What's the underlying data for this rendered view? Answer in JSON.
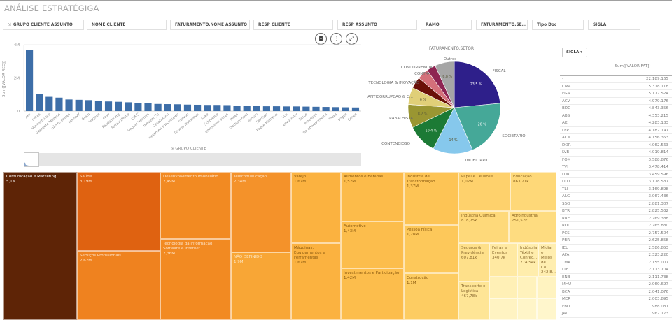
{
  "app": {
    "title": "ANÁLISE ESTRATÉGIGA"
  },
  "filters": [
    {
      "label": "GRUPO CLIENTE ASSUNTO",
      "icon": "hierarchy-icon"
    },
    {
      "label": "NOME CLIENTE"
    },
    {
      "label": "FATURAMENTO.NOME ASSUNTO"
    },
    {
      "label": "RESP CLIENTE"
    },
    {
      "label": "RESP ASSUNTO"
    },
    {
      "label": "RAMO"
    },
    {
      "label": "FATURAMENTO.SE..."
    },
    {
      "label": "Tipo Doc"
    },
    {
      "label": "SIGLA"
    }
  ],
  "bar_tools": {
    "snapshot": "camera-icon",
    "settings": "sliders-icon",
    "expand": "expand-icon"
  },
  "chart_data": [
    {
      "type": "bar",
      "ylabel": "Sum([VALOR REC])",
      "xlabel": "GRUPO CLIENTE",
      "yticks": [
        "0",
        "2M",
        "4M"
      ],
      "ylim": [
        0,
        4000000
      ],
      "color": "#3d6ea8",
      "categories": [
        "xxx",
        "cekes",
        "Vovosemvom",
        "Gemeem Momms",
        "não fe epices",
        "fosecvV",
        "Gmm",
        "Hughes",
        "cesv",
        "Faedemcerg",
        "femvicifespe",
        "CMrC",
        "Unovel Heemm",
        "mevem (1)",
        "Cesefasson",
        "nexemen successewe",
        "cosvon",
        "Gsomo Jesesoevo",
        "Kuke",
        "Schomme",
        "emesocen voses",
        "mees",
        "Dezhenvhem",
        "ecosvv",
        "Senfsoe",
        "Foese Momeno",
        "Vco",
        "esvonomy",
        "Essos",
        "emesoen",
        "Gn omvesvmems",
        "foves",
        "voges",
        "Ceses"
      ],
      "values": [
        3700000,
        1030000,
        860000,
        810000,
        700000,
        680000,
        660000,
        630000,
        580000,
        560000,
        530000,
        500000,
        470000,
        430000,
        420000,
        410000,
        390000,
        380000,
        370000,
        370000,
        360000,
        330000,
        320000,
        300000,
        290000,
        290000,
        280000,
        280000,
        270000,
        260000,
        250000,
        240000,
        230000,
        220000
      ]
    },
    {
      "type": "pie",
      "title": "FATURAMENTO.SETOR",
      "slices": [
        {
          "label": "FISCAL",
          "value": 23.5,
          "pct_label": "23,5 %",
          "color": "#2e1f8a"
        },
        {
          "label": "SOCIETARIO",
          "value": 20,
          "pct_label": "20 %",
          "color": "#45a898"
        },
        {
          "label": "IMOBILIARIO",
          "value": 14,
          "pct_label": "14 %",
          "color": "#86c8ec"
        },
        {
          "label": "CONTENCIOSO",
          "value": 10.4,
          "pct_label": "10,4 %",
          "color": "#1c7a35"
        },
        {
          "label": "TRABALHISTA",
          "value": 8.2,
          "pct_label": "8,2 %",
          "color": "#9a9632"
        },
        {
          "label": "ANTICORRUPCAO & C...",
          "value": 6,
          "pct_label": "6 %",
          "color": "#e0cf78"
        },
        {
          "label": "TECNOLOGIA & INOVAÇÃO",
          "value": 4,
          "pct_label": "",
          "color": "#6a1008"
        },
        {
          "label": "CONTRATOS",
          "value": 3.9,
          "pct_label": "",
          "color": "#d4707a"
        },
        {
          "label": "CONCORRENCIAL",
          "value": 3.2,
          "pct_label": "",
          "color": "#8e2452"
        },
        {
          "label": "Outros",
          "value": 6.8,
          "pct_label": "6,8 %",
          "color": "#a6a6a6"
        }
      ]
    },
    {
      "type": "table",
      "dimension": "SIGLA",
      "measure": "Sum([VALOR FAT])",
      "rows": [
        [
          "-",
          "22.189.165"
        ],
        [
          "CMA",
          "5.318.118"
        ],
        [
          "FGA",
          "5.177.524"
        ],
        [
          "ACV",
          "4.979.176"
        ],
        [
          "BDC",
          "4.843.356"
        ],
        [
          "ABS",
          "4.353.215"
        ],
        [
          "AKI",
          "4.283.183"
        ],
        [
          "LFP",
          "4.182.147"
        ],
        [
          "ACM",
          "4.156.353"
        ],
        [
          "DOR",
          "4.062.563"
        ],
        [
          "LVB",
          "4.019.814"
        ],
        [
          "FOM",
          "3.588.876"
        ],
        [
          "TVI",
          "3.478.414"
        ],
        [
          "LUR",
          "3.459.596"
        ],
        [
          "LCO",
          "3.178.587"
        ],
        [
          "TLI",
          "3.169.898"
        ],
        [
          "ALG",
          "3.067.436"
        ],
        [
          "SSO",
          "2.881.307"
        ],
        [
          "BTR",
          "2.825.532"
        ],
        [
          "RRE",
          "2.769.388"
        ],
        [
          "ROC",
          "2.765.880"
        ],
        [
          "PCS",
          "2.757.504"
        ],
        [
          "PBR",
          "2.625.858"
        ],
        [
          "JEL",
          "2.586.853"
        ],
        [
          "AFA",
          "2.323.220"
        ],
        [
          "TMA",
          "2.155.007"
        ],
        [
          "LTE",
          "2.113.704"
        ],
        [
          "ENB",
          "2.111.738"
        ],
        [
          "MHU",
          "2.060.697"
        ],
        [
          "BCA",
          "2.041.076"
        ],
        [
          "MER",
          "2.003.895"
        ],
        [
          "FBO",
          "1.988.031"
        ],
        [
          "JAL",
          "1.962.173"
        ]
      ]
    },
    {
      "type": "treemap",
      "dimension": "RAMO",
      "items": [
        {
          "name": "Comunicação e Marketing",
          "value_label": "5,1M",
          "color": "#5e2406",
          "text": "#ffffff"
        },
        {
          "name": "Saúde",
          "value_label": "3,19M",
          "color": "#df6211",
          "text": "#fde3c8"
        },
        {
          "name": "Serviços Profissionais",
          "value_label": "2,62M",
          "color": "#ef821f",
          "text": "#fde3c8"
        },
        {
          "name": "Desenvolvimento Imobiliário",
          "value_label": "2,49M",
          "color": "#f28a22",
          "text": "#fde3c8"
        },
        {
          "name": "Tecnologia da Informação, Software e Internet",
          "value_label": "2,36M",
          "color": "#f28a22",
          "text": "#fde3c8"
        },
        {
          "name": "Telecomunicação",
          "value_label": "2,34M",
          "color": "#f4922a",
          "text": "#fde3c8"
        },
        {
          "name": "NÃO DEFINIDO",
          "value_label": "1,9M",
          "color": "#f8a636",
          "text": "#fde7c4"
        },
        {
          "name": "Varejo",
          "value_label": "1,67M",
          "color": "#fbb240",
          "text": "#8a5a10"
        },
        {
          "name": "Máquinas, Equipamentos e Ferramentas",
          "value_label": "1,67M",
          "color": "#fbb240",
          "text": "#8a5a10"
        },
        {
          "name": "Alimentos e Bebidas",
          "value_label": "1,52M",
          "color": "#fcbb4a",
          "text": "#8a5a10"
        },
        {
          "name": "Automotivo",
          "value_label": "1,43M",
          "color": "#fcbd4c",
          "text": "#8a5a10"
        },
        {
          "name": "Investimentos e Participação",
          "value_label": "1,42M",
          "color": "#fcbd4c",
          "text": "#8a5a10"
        },
        {
          "name": "Indústria de Transformação",
          "value_label": "1,37M",
          "color": "#fdc455",
          "text": "#8a5a10"
        },
        {
          "name": "Pessoa Física",
          "value_label": "1,28M",
          "color": "#fdc85a",
          "text": "#8a5a10"
        },
        {
          "name": "Construção",
          "value_label": "1,1M",
          "color": "#fdcc62",
          "text": "#8a5a10"
        },
        {
          "name": "Papel e Celulose",
          "value_label": "1,02M",
          "color": "#fed16c",
          "text": "#8a6420"
        },
        {
          "name": "Educação",
          "value_label": "863,21k",
          "color": "#fed878",
          "text": "#8a6420"
        },
        {
          "name": "Indústria Química",
          "value_label": "818,75k",
          "color": "#fed97a",
          "text": "#8a6420"
        },
        {
          "name": "Agroindústria",
          "value_label": "751,52k",
          "color": "#fedc80",
          "text": "#8a6420"
        },
        {
          "name": "Seguros & Previdência",
          "value_label": "607,81k",
          "color": "#fee08a",
          "text": "#8a6a30"
        },
        {
          "name": "Transporte e Logística",
          "value_label": "467,78k",
          "color": "#fee596",
          "text": "#8a6a30"
        },
        {
          "name": "Feiras e Eventos",
          "value_label": "340,7k",
          "color": "#ffe9a2",
          "text": "#8a6a30"
        },
        {
          "name": "Indústria Têxtil e Confec...",
          "value_label": "274,54k",
          "color": "#ffedac",
          "text": "#8a6a30"
        },
        {
          "name": "Mídia e Meios de Co...",
          "value_label": "242,8...",
          "color": "#ffeeb0",
          "text": "#8a6a30"
        }
      ]
    }
  ]
}
